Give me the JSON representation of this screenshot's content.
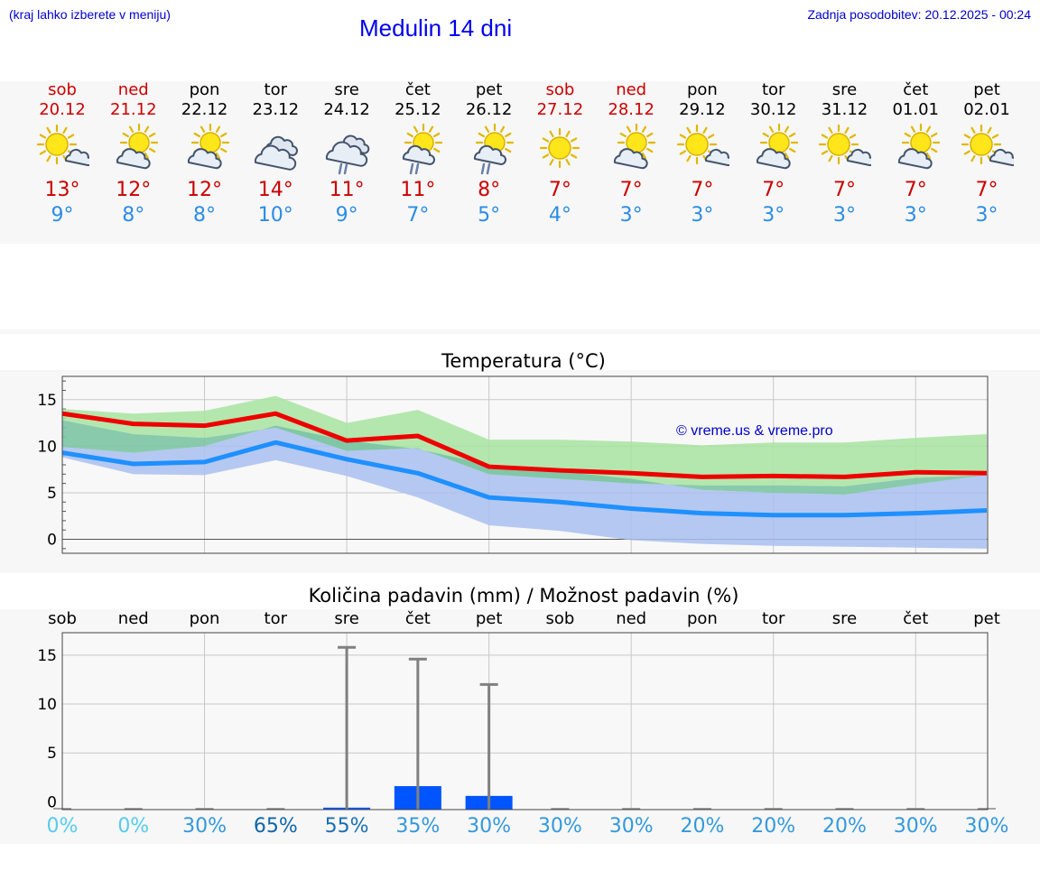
{
  "header": {
    "left_note": "(kraj lahko izberete v meniju)",
    "title": "Medulin 14 dni",
    "updated": "Zadnja posodobitev: 20.12.2025 - 00:24"
  },
  "days": [
    {
      "name": "sob",
      "date": "20.12",
      "weekend": true,
      "icon": "sun-cloud-icon",
      "max": "13°",
      "min": "9°"
    },
    {
      "name": "ned",
      "date": "21.12",
      "weekend": true,
      "icon": "cloud-sun-icon",
      "max": "12°",
      "min": "8°"
    },
    {
      "name": "pon",
      "date": "22.12",
      "weekend": false,
      "icon": "cloud-sun-icon",
      "max": "12°",
      "min": "8°"
    },
    {
      "name": "tor",
      "date": "23.12",
      "weekend": false,
      "icon": "cloudy-icon",
      "max": "14°",
      "min": "10°"
    },
    {
      "name": "sre",
      "date": "24.12",
      "weekend": false,
      "icon": "cloud-rain-icon",
      "max": "11°",
      "min": "9°"
    },
    {
      "name": "čet",
      "date": "25.12",
      "weekend": false,
      "icon": "sun-cloud-rain-icon",
      "max": "11°",
      "min": "7°"
    },
    {
      "name": "pet",
      "date": "26.12",
      "weekend": false,
      "icon": "sun-cloud-rain-icon",
      "max": "8°",
      "min": "5°"
    },
    {
      "name": "sob",
      "date": "27.12",
      "weekend": true,
      "icon": "sun-icon",
      "max": "7°",
      "min": "4°"
    },
    {
      "name": "ned",
      "date": "28.12",
      "weekend": true,
      "icon": "cloud-sun-icon",
      "max": "7°",
      "min": "3°"
    },
    {
      "name": "pon",
      "date": "29.12",
      "weekend": false,
      "icon": "sun-cloud-icon",
      "max": "7°",
      "min": "3°"
    },
    {
      "name": "tor",
      "date": "30.12",
      "weekend": false,
      "icon": "cloud-sun-icon",
      "max": "7°",
      "min": "3°"
    },
    {
      "name": "sre",
      "date": "31.12",
      "weekend": false,
      "icon": "sun-cloud-icon",
      "max": "7°",
      "min": "3°"
    },
    {
      "name": "čet",
      "date": "01.01",
      "weekend": false,
      "icon": "cloud-sun-icon",
      "max": "7°",
      "min": "3°"
    },
    {
      "name": "pet",
      "date": "02.01",
      "weekend": false,
      "icon": "sun-cloud-icon",
      "max": "7°",
      "min": "3°"
    }
  ],
  "colors": {
    "max_line": "#ee0000",
    "min_line": "#1e90ff",
    "max_band": "#a8e4a0",
    "min_band": "#a9c0f0",
    "overlap_band": "#7cc4a4",
    "bar": "#0055ff",
    "whisker": "#808080"
  },
  "chart_data": [
    {
      "type": "line",
      "title": "Temperatura (°C)",
      "watermark": "© vreme.us & vreme.pro",
      "x": [
        0,
        1,
        2,
        3,
        4,
        5,
        6,
        7,
        8,
        9,
        10,
        11,
        12,
        13
      ],
      "ylim": [
        -1.5,
        17.5
      ],
      "yticks": [
        0,
        5,
        10,
        15
      ],
      "series": [
        {
          "name": "max",
          "values": [
            13.5,
            12.4,
            12.2,
            13.5,
            10.6,
            11.1,
            7.8,
            7.4,
            7.1,
            6.7,
            6.8,
            6.7,
            7.2,
            7.1
          ]
        },
        {
          "name": "min",
          "values": [
            9.3,
            8.1,
            8.3,
            10.4,
            8.6,
            7.1,
            4.5,
            4.0,
            3.3,
            2.8,
            2.6,
            2.6,
            2.8,
            3.1
          ]
        }
      ],
      "bands": [
        {
          "name": "max_range",
          "low": [
            12.8,
            11.3,
            10.9,
            12.0,
            9.5,
            9.8,
            7.0,
            6.5,
            6.0,
            5.8,
            5.8,
            5.7,
            6.6,
            6.9
          ],
          "high": [
            14.0,
            13.5,
            13.8,
            15.4,
            12.5,
            13.9,
            10.7,
            10.7,
            10.5,
            10.1,
            10.4,
            10.4,
            10.9,
            11.3
          ]
        },
        {
          "name": "min_range",
          "low": [
            8.8,
            7.0,
            6.9,
            8.5,
            6.8,
            4.5,
            1.5,
            0.9,
            -0.1,
            -0.5,
            -0.7,
            -0.8,
            -0.9,
            -1.0
          ],
          "high": [
            9.9,
            9.3,
            10.0,
            12.2,
            10.6,
            9.7,
            8.0,
            7.3,
            6.5,
            5.3,
            5.0,
            4.8,
            5.9,
            6.9
          ]
        }
      ]
    },
    {
      "type": "bar",
      "title": "Količina padavin (mm) / Možnost padavin (%)",
      "categories": [
        "sob",
        "ned",
        "pon",
        "tor",
        "sre",
        "čet",
        "pet",
        "sob",
        "ned",
        "pon",
        "tor",
        "sre",
        "čet",
        "pet"
      ],
      "ylim": [
        -0.8,
        17.3
      ],
      "yticks": [
        0,
        5,
        10,
        15
      ],
      "values": [
        0,
        0,
        0,
        0,
        0.2,
        2.4,
        1.4,
        0,
        0,
        0,
        0,
        0,
        0,
        0
      ],
      "whisker_max": [
        0,
        0,
        0,
        0,
        15.8,
        14.6,
        12.0,
        0,
        0,
        0,
        0,
        0,
        0,
        0
      ],
      "probability": [
        "0%",
        "0%",
        "30%",
        "65%",
        "55%",
        "35%",
        "30%",
        "30%",
        "30%",
        "20%",
        "20%",
        "20%",
        "30%",
        "30%"
      ],
      "probability_colors": [
        "#55ccee",
        "#55ccee",
        "#3399dd",
        "#1166aa",
        "#1a6fb3",
        "#3399dd",
        "#3399dd",
        "#3399dd",
        "#3399dd",
        "#3399dd",
        "#3399dd",
        "#3399dd",
        "#3399dd",
        "#3399dd"
      ]
    }
  ]
}
